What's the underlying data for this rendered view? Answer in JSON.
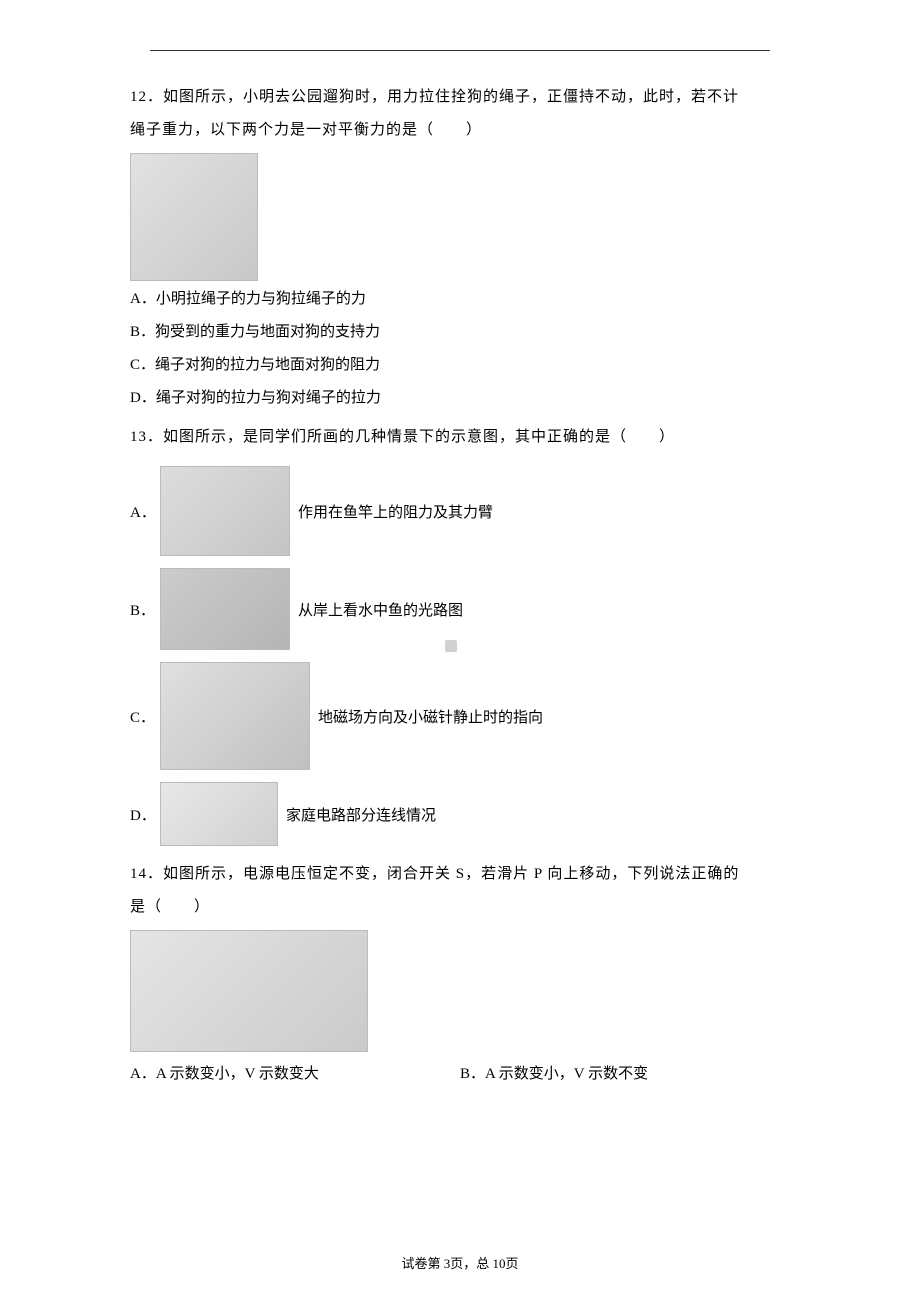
{
  "q12": {
    "number": "12",
    "stem_line1": "12．如图所示，小明去公园遛狗时，用力拉住拴狗的绳子，正僵持不动，此时，若不计",
    "stem_line2": "绳子重力，以下两个力是一对平衡力的是（　　）",
    "options": {
      "A": "A．小明拉绳子的力与狗拉绳子的力",
      "B": "B．狗受到的重力与地面对狗的支持力",
      "C": "C．绳子对狗的拉力与地面对狗的阻力",
      "D": "D．绳子对狗的拉力与狗对绳子的拉力"
    }
  },
  "q13": {
    "number": "13",
    "stem": "13．如图所示，是同学们所画的几种情景下的示意图，其中正确的是（　　）",
    "options": {
      "A": {
        "label": "A．",
        "desc": "作用在鱼竿上的阻力及其力臂"
      },
      "B": {
        "label": "B．",
        "desc": "从岸上看水中鱼的光路图"
      },
      "C": {
        "label": "C．",
        "desc": "地磁场方向及小磁针静止时的指向"
      },
      "D": {
        "label": "D．",
        "desc": "家庭电路部分连线情况"
      }
    }
  },
  "q14": {
    "number": "14",
    "stem_line1": "14．如图所示，电源电压恒定不变，闭合开关 S，若滑片 P 向上移动，下列说法正确的",
    "stem_line2": "是（　　）",
    "options": {
      "A": "A．A 示数变小，V 示数变大",
      "B": "B．A 示数变小，V 示数不变"
    }
  },
  "footer": "试卷第 3页，总 10页"
}
